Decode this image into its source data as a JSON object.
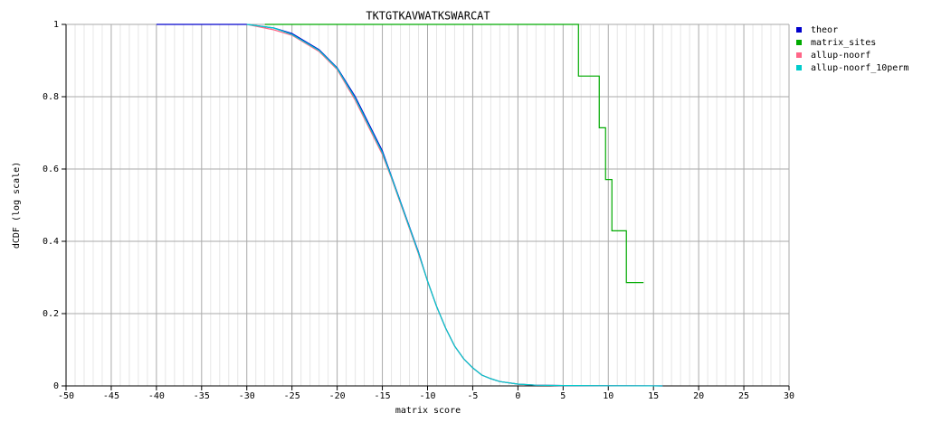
{
  "chart_data": {
    "type": "line",
    "title": "TKTGTKAVWATKSWARCAT",
    "x_label": "matrix score",
    "y_label": "dCDF (log scale)",
    "x": [
      -40,
      -30,
      -27,
      -25,
      -22,
      -20,
      -18,
      -16,
      -15,
      -14,
      -13,
      -12,
      -11,
      -10,
      -9,
      -8,
      -7,
      -6,
      -5,
      -4,
      -3,
      -2,
      0,
      2,
      5,
      10,
      15,
      16
    ],
    "series": [
      {
        "name": "theor",
        "color": "#0000cc",
        "values": [
          1,
          1,
          0.99,
          0.975,
          0.93,
          0.88,
          0.8,
          0.7,
          0.65,
          0.58,
          0.51,
          0.44,
          0.37,
          0.29,
          0.22,
          0.16,
          0.11,
          0.075,
          0.05,
          0.03,
          0.02,
          0.012,
          0.005,
          0.002,
          0.001,
          0.0005,
          0.0002,
          0
        ]
      },
      {
        "name": "matrix_sites",
        "color": "#00aa00",
        "x": [
          -28,
          6.7,
          6.7,
          9,
          9,
          9.7,
          9.7,
          10.4,
          10.4,
          12,
          12,
          13.9
        ],
        "values": [
          1,
          1,
          0.857,
          0.857,
          0.714,
          0.714,
          0.571,
          0.571,
          0.429,
          0.429,
          0.286,
          0.286
        ]
      },
      {
        "name": "allup-noorf",
        "color": "#ff6688",
        "values": [
          null,
          1,
          0.985,
          0.97,
          0.925,
          0.875,
          0.79,
          0.69,
          0.64,
          0.575,
          0.505,
          0.435,
          0.365,
          0.29,
          0.22,
          0.16,
          0.11,
          0.075,
          0.05,
          0.03,
          0.02,
          0.012,
          0.005,
          0.002,
          0.001,
          0.0005,
          0.0002,
          0
        ]
      },
      {
        "name": "allup-noorf_10perm",
        "color": "#00cccc",
        "values": [
          null,
          1,
          0.99,
          0.972,
          0.928,
          0.878,
          0.795,
          0.695,
          0.645,
          0.578,
          0.508,
          0.438,
          0.368,
          0.29,
          0.22,
          0.16,
          0.11,
          0.075,
          0.05,
          0.03,
          0.02,
          0.012,
          0.005,
          0.002,
          0.001,
          0.0005,
          0.0002,
          0
        ]
      }
    ],
    "xlim": [
      -50,
      30
    ],
    "xticks": [
      -50,
      -45,
      -40,
      -35,
      -30,
      -25,
      -20,
      -15,
      -10,
      -5,
      0,
      5,
      10,
      15,
      20,
      25,
      30
    ],
    "ylim": [
      0,
      1
    ],
    "yticks": [
      0,
      0.2,
      0.4,
      0.6,
      0.8,
      1
    ],
    "grid": true,
    "legend": "right"
  }
}
